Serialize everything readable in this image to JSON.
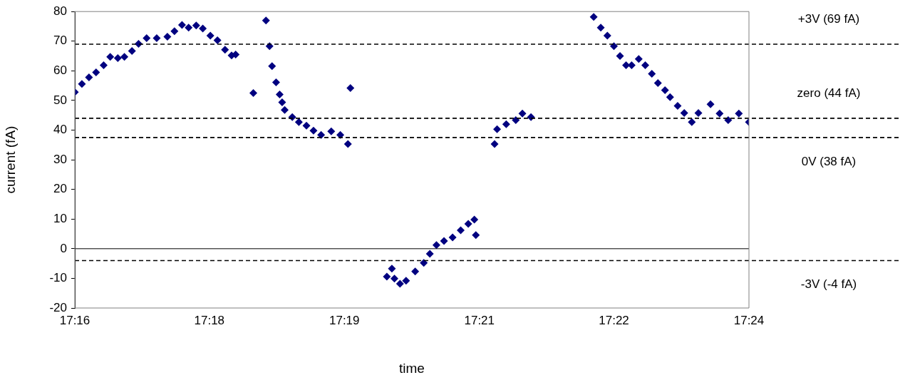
{
  "chart_data": {
    "type": "scatter",
    "xlabel": "time",
    "ylabel": "current (fA)",
    "xlim": [
      17.2667,
      17.4
    ],
    "xticks": [
      {
        "value": 17.2667,
        "label": "17:16"
      },
      {
        "value": 17.2933,
        "label": "17:18"
      },
      {
        "value": 17.32,
        "label": "17:19"
      },
      {
        "value": 17.3467,
        "label": "17:21"
      },
      {
        "value": 17.3733,
        "label": "17:22"
      },
      {
        "value": 17.4,
        "label": "17:24"
      }
    ],
    "ylim": [
      -20,
      80
    ],
    "yticks": [
      -20,
      -10,
      0,
      10,
      20,
      30,
      40,
      50,
      60,
      70,
      80
    ],
    "grid": false,
    "legend": false,
    "marker": "diamond",
    "ref_lines": [
      {
        "axis": "y",
        "value": 69,
        "label": "+3V (69 fA)",
        "line_style": "dashed"
      },
      {
        "axis": "y",
        "value": 44,
        "label": "zero (44 fA)",
        "line_style": "dashed"
      },
      {
        "axis": "y",
        "value": 37.5,
        "label": "0V (38 fA)",
        "line_style": "dashed"
      },
      {
        "axis": "y",
        "value": -4,
        "label": "-3V (-4 fA)",
        "line_style": "dashed"
      },
      {
        "axis": "y",
        "value": 0,
        "line_style": "solid"
      }
    ],
    "series": [
      {
        "color": "#000080",
        "x": [
          17.2667,
          17.2681,
          17.2695,
          17.2709,
          17.2724,
          17.2737,
          17.2752,
          17.2765,
          17.278,
          17.2793,
          17.2809,
          17.2829,
          17.285,
          17.2864,
          17.2879,
          17.2892,
          17.2907,
          17.292,
          17.2935,
          17.2949,
          17.2964,
          17.2977,
          17.2985,
          17.302,
          17.3045,
          17.3052,
          17.3057,
          17.3065,
          17.3072,
          17.3077,
          17.3082,
          17.3097,
          17.311,
          17.3125,
          17.3139,
          17.3154,
          17.3174,
          17.3192,
          17.3207,
          17.3212,
          17.3284,
          17.3294,
          17.3299,
          17.331,
          17.3322,
          17.334,
          17.3357,
          17.3369,
          17.3382,
          17.3397,
          17.3414,
          17.343,
          17.3445,
          17.3457,
          17.346,
          17.3497,
          17.3502,
          17.352,
          17.3539,
          17.3552,
          17.3569,
          17.3693,
          17.3707,
          17.372,
          17.3733,
          17.3745,
          17.3757,
          17.3768,
          17.3782,
          17.3795,
          17.3808,
          17.382,
          17.3834,
          17.3844,
          17.3859,
          17.3872,
          17.3887,
          17.39,
          17.3924,
          17.3942,
          17.3959,
          17.398,
          17.4
        ],
        "values": [
          52.8,
          55.6,
          57.8,
          59.5,
          61.9,
          64.7,
          64.3,
          64.7,
          66.7,
          69.1,
          71.0,
          71.0,
          71.5,
          73.4,
          75.5,
          74.6,
          75.3,
          74.3,
          71.9,
          70.3,
          67.1,
          65.2,
          65.5,
          52.5,
          77,
          68.3,
          61.6,
          56.1,
          52.0,
          49.4,
          46.8,
          44.4,
          42.7,
          41.5,
          39.8,
          38.4,
          39.6,
          38.4,
          35.3,
          54.2,
          -9.4,
          -6.7,
          -10.1,
          -11.8,
          -10.8,
          -7.7,
          -4.8,
          -1.7,
          1.2,
          2.6,
          3.8,
          6.2,
          8.4,
          9.8,
          4.6,
          35.3,
          40.3,
          42.0,
          43.4,
          45.6,
          44.4,
          78.2,
          74.6,
          71.9,
          68.3,
          65.0,
          61.9,
          61.9,
          64.0,
          61.9,
          59.0,
          55.9,
          53.5,
          51.1,
          48.2,
          45.8,
          42.7,
          45.8,
          48.7,
          45.6,
          43.4,
          45.6,
          42.7
        ]
      }
    ]
  }
}
